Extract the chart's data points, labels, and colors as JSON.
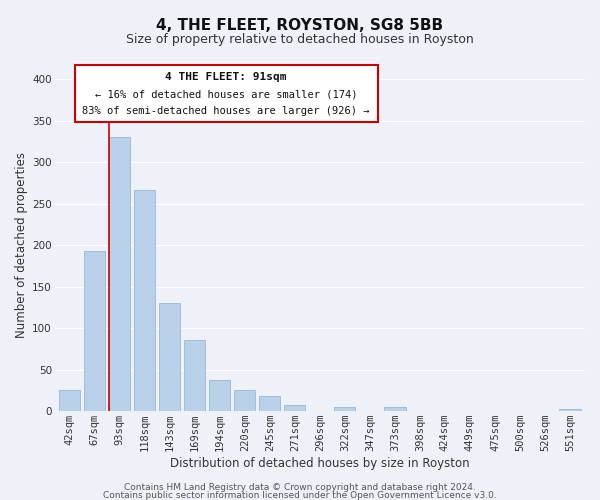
{
  "title": "4, THE FLEET, ROYSTON, SG8 5BB",
  "subtitle": "Size of property relative to detached houses in Royston",
  "xlabel": "Distribution of detached houses by size in Royston",
  "ylabel": "Number of detached properties",
  "categories": [
    "42sqm",
    "67sqm",
    "93sqm",
    "118sqm",
    "143sqm",
    "169sqm",
    "194sqm",
    "220sqm",
    "245sqm",
    "271sqm",
    "296sqm",
    "322sqm",
    "347sqm",
    "373sqm",
    "398sqm",
    "424sqm",
    "449sqm",
    "475sqm",
    "500sqm",
    "526sqm",
    "551sqm"
  ],
  "values": [
    25,
    193,
    330,
    266,
    130,
    86,
    38,
    26,
    18,
    8,
    0,
    5,
    0,
    5,
    0,
    0,
    0,
    0,
    0,
    0,
    3
  ],
  "bar_color": "#b8d0e8",
  "bar_edge_color": "#8ab0d0",
  "highlight_bar_index": 2,
  "highlight_color": "#cc0000",
  "ylim": [
    0,
    400
  ],
  "yticks": [
    0,
    50,
    100,
    150,
    200,
    250,
    300,
    350,
    400
  ],
  "annotation_title": "4 THE FLEET: 91sqm",
  "annotation_line1": "← 16% of detached houses are smaller (174)",
  "annotation_line2": "83% of semi-detached houses are larger (926) →",
  "annotation_box_color": "#ffffff",
  "annotation_box_edgecolor": "#cc0000",
  "footer_line1": "Contains HM Land Registry data © Crown copyright and database right 2024.",
  "footer_line2": "Contains public sector information licensed under the Open Government Licence v3.0.",
  "background_color": "#eef2f8",
  "grid_color": "#ffffff",
  "title_fontsize": 11,
  "subtitle_fontsize": 9,
  "axis_label_fontsize": 8.5,
  "tick_fontsize": 7.5,
  "footer_fontsize": 6.5,
  "annotation_title_fontsize": 8,
  "annotation_text_fontsize": 7.5
}
